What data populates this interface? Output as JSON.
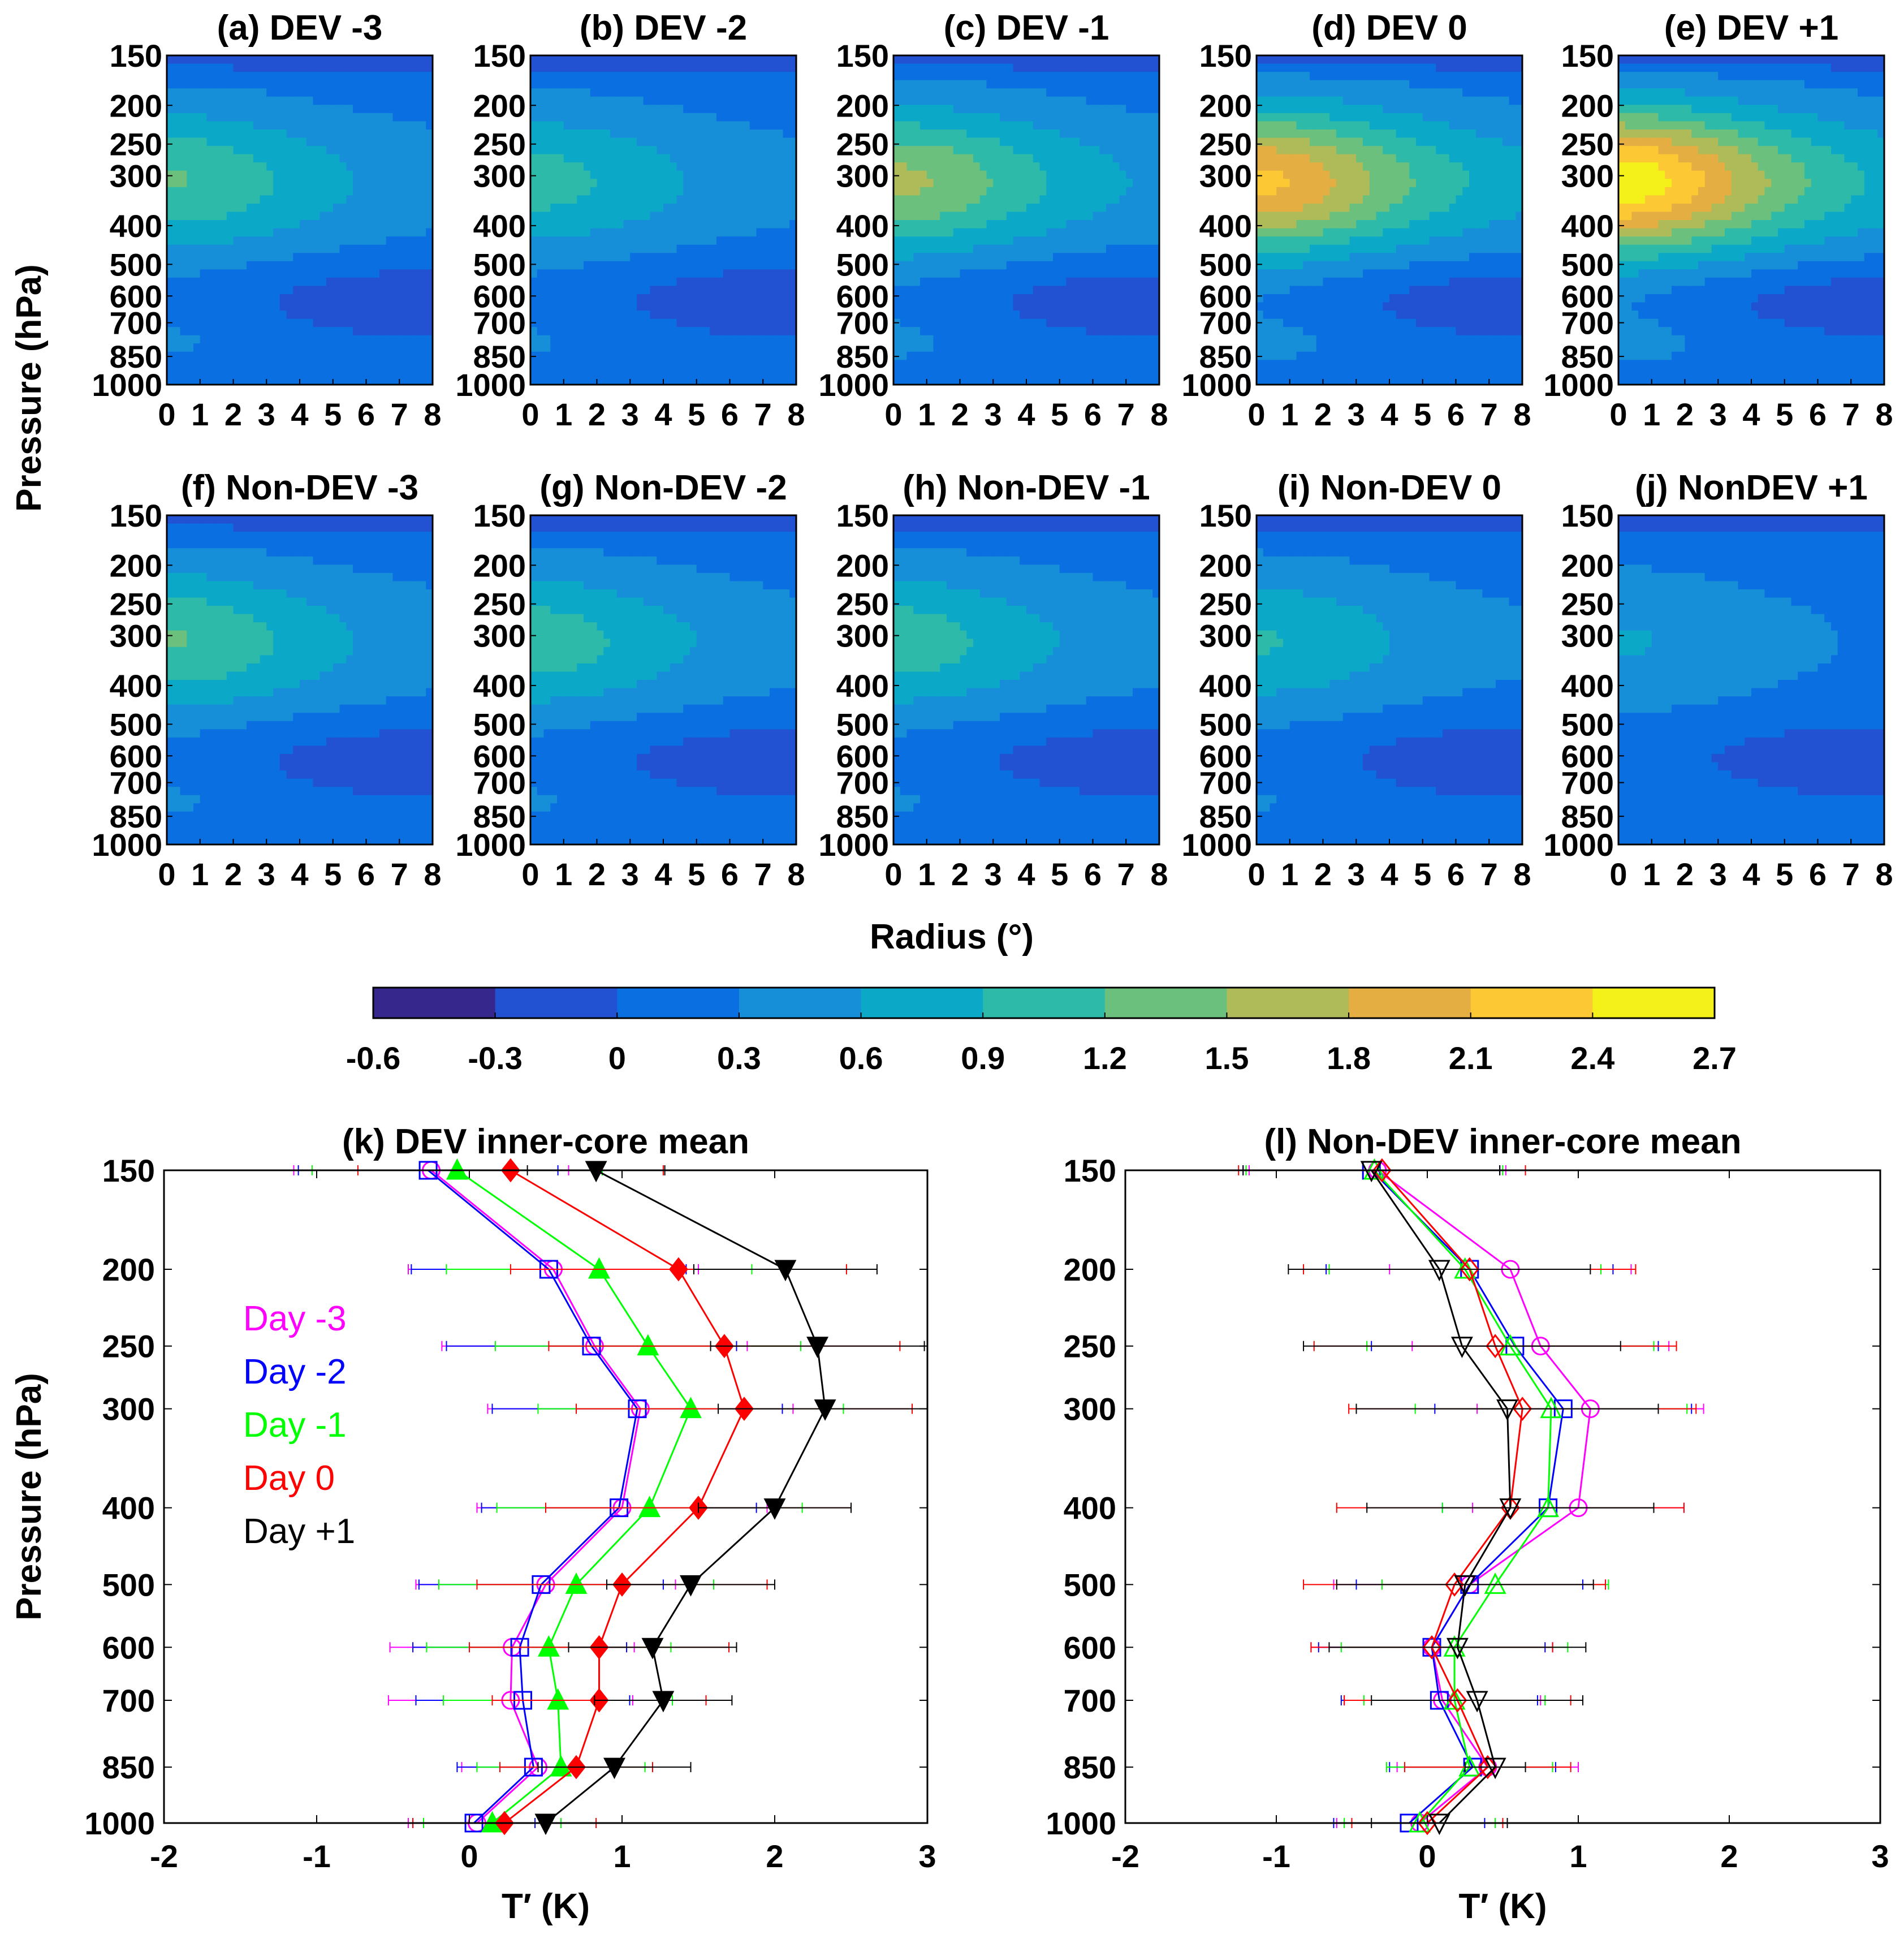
{
  "chart_data": [
    {
      "type": "contour",
      "group": "composite radius-pressure cross sections of temperature anomaly",
      "panels": [
        {
          "title": "(a) DEV -3",
          "peak": 1.1,
          "peak_p": 300
        },
        {
          "title": "(b) DEV -2",
          "peak": 0.9,
          "peak_p": 300
        },
        {
          "title": "(c) DEV -1",
          "peak": 1.45,
          "peak_p": 300
        },
        {
          "title": "(d) DEV 0",
          "peak": 2.05,
          "peak_p": 300
        },
        {
          "title": "(e) DEV +1",
          "peak": 2.5,
          "peak_p": 300
        },
        {
          "title": "(f) Non-DEV -3",
          "peak": 1.1,
          "peak_p": 300
        },
        {
          "title": "(g) Non-DEV -2",
          "peak": 0.95,
          "peak_p": 300
        },
        {
          "title": "(h) Non-DEV -1",
          "peak": 0.95,
          "peak_p": 300
        },
        {
          "title": "(i) Non-DEV 0",
          "peak": 0.8,
          "peak_p": 300
        },
        {
          "title": "(j) NonDEV +1",
          "peak": 0.5,
          "peak_p": 300
        }
      ],
      "x_ticks": [
        "0",
        "1",
        "2",
        "3",
        "4",
        "5",
        "6",
        "7",
        "8"
      ],
      "xlim": [
        0,
        8
      ],
      "y_ticks": [
        "150",
        "200",
        "250",
        "300",
        "400",
        "500",
        "600",
        "700",
        "850",
        "1000"
      ],
      "ylabel": "Pressure (hPa)",
      "xlabel": "Radius (°)"
    },
    {
      "type": "colorbar",
      "levels": [
        "-0.6",
        "-0.3",
        "0",
        "0.3",
        "0.6",
        "0.9",
        "1.2",
        "1.5",
        "1.8",
        "2.1",
        "2.4",
        "2.7"
      ],
      "colors": [
        "#35278c",
        "#2251d1",
        "#0a6fe0",
        "#168fd8",
        "#0ca8c8",
        "#2ebaa8",
        "#6cc07d",
        "#aebb58",
        "#e4ae42",
        "#fcc834",
        "#f3f01a"
      ]
    },
    {
      "type": "line",
      "title": "(k) DEV inner-core mean",
      "xlabel": "T′ (K)",
      "ylabel": "Pressure (hPa)",
      "xlim": [
        -2,
        3
      ],
      "x_ticks": [
        "-2",
        "-1",
        "0",
        "1",
        "2",
        "3"
      ],
      "pressure": [
        150,
        200,
        250,
        300,
        400,
        500,
        600,
        700,
        850,
        1000
      ],
      "y_ticks": [
        "150",
        "200",
        "250",
        "300",
        "400",
        "500",
        "600",
        "700",
        "850",
        "1000"
      ],
      "series": [
        {
          "name": "Day -3",
          "color": "#ff00ff",
          "marker": "circle",
          "filled": false,
          "values": [
            -0.25,
            0.55,
            0.82,
            1.12,
            1.0,
            0.5,
            0.28,
            0.27,
            0.45,
            0.05
          ],
          "spread": [
            0.9,
            0.95,
            1.0,
            1.0,
            0.95,
            0.85,
            0.8,
            0.8,
            0.5,
            0.45
          ]
        },
        {
          "name": "Day -2",
          "color": "#0000ff",
          "marker": "square",
          "filled": false,
          "values": [
            -0.27,
            0.52,
            0.8,
            1.1,
            0.98,
            0.47,
            0.33,
            0.35,
            0.42,
            0.03
          ],
          "spread": [
            0.85,
            0.9,
            0.95,
            0.95,
            0.9,
            0.8,
            0.7,
            0.7,
            0.5,
            0.4
          ]
        },
        {
          "name": "Day -1",
          "color": "#00ff00",
          "marker": "triangle-up",
          "filled": true,
          "values": [
            -0.08,
            0.85,
            1.17,
            1.45,
            1.18,
            0.7,
            0.52,
            0.58,
            0.6,
            0.15
          ],
          "spread": [
            0.95,
            1.0,
            1.0,
            1.0,
            1.0,
            0.9,
            0.8,
            0.75,
            0.55,
            0.45
          ]
        },
        {
          "name": "Day 0",
          "color": "#ff0000",
          "marker": "diamond",
          "filled": true,
          "values": [
            0.27,
            1.37,
            1.67,
            1.8,
            1.5,
            1.0,
            0.85,
            0.85,
            0.7,
            0.23
          ],
          "spread": [
            1.0,
            1.1,
            1.15,
            1.1,
            1.0,
            0.95,
            0.85,
            0.7,
            0.5,
            0.6
          ]
        },
        {
          "name": "Day +1",
          "color": "#000000",
          "marker": "triangle-down",
          "filled": true,
          "values": [
            0.83,
            2.07,
            2.28,
            2.33,
            2.0,
            1.45,
            1.2,
            1.27,
            0.95,
            0.5
          ],
          "spread": [
            0.45,
            0.6,
            0.7,
            0.7,
            0.5,
            0.55,
            0.55,
            0.45,
            0.5,
            0.0
          ]
        }
      ],
      "legend": [
        "Day -3",
        "Day -2",
        "Day -1",
        "Day 0",
        "Day +1"
      ]
    },
    {
      "type": "line",
      "title": "(l) Non-DEV inner-core mean",
      "xlabel": "T′ (K)",
      "xlim": [
        -2,
        3
      ],
      "x_ticks": [
        "-2",
        "-1",
        "0",
        "1",
        "2",
        "3"
      ],
      "pressure": [
        150,
        200,
        250,
        300,
        400,
        500,
        600,
        700,
        850,
        1000
      ],
      "y_ticks": [
        "150",
        "200",
        "250",
        "300",
        "400",
        "500",
        "600",
        "700",
        "850",
        "1000"
      ],
      "series": [
        {
          "name": "Day -3",
          "color": "#ff00ff",
          "marker": "circle",
          "values": [
            -0.33,
            0.55,
            0.75,
            1.08,
            1.0,
            0.28,
            0.03,
            0.1,
            0.4,
            -0.05
          ],
          "spread": [
            0.85,
            0.8,
            0.85,
            0.75,
            0.7,
            0.9,
            0.8,
            0.65,
            0.6,
            0.55
          ]
        },
        {
          "name": "Day -2",
          "color": "#0000ff",
          "marker": "square",
          "values": [
            -0.37,
            0.28,
            0.58,
            0.9,
            0.8,
            0.28,
            0.03,
            0.08,
            0.3,
            -0.12
          ],
          "spread": [
            0.85,
            0.95,
            0.95,
            0.85,
            0.7,
            0.75,
            0.75,
            0.65,
            0.55,
            0.5
          ]
        },
        {
          "name": "Day -1",
          "color": "#00ff00",
          "marker": "triangle-up",
          "values": [
            -0.35,
            0.25,
            0.55,
            0.82,
            0.8,
            0.45,
            0.18,
            0.18,
            0.28,
            -0.05
          ],
          "spread": [
            0.85,
            0.9,
            0.95,
            0.9,
            0.7,
            0.75,
            0.75,
            0.6,
            0.55,
            0.5
          ]
        },
        {
          "name": "Day 0",
          "color": "#ff0000",
          "marker": "diamond",
          "values": [
            -0.3,
            0.28,
            0.45,
            0.63,
            0.55,
            0.18,
            0.03,
            0.2,
            0.4,
            0.0
          ],
          "spread": [
            0.95,
            1.1,
            1.2,
            1.15,
            1.15,
            1.0,
            0.8,
            0.75,
            0.55,
            0.5
          ]
        },
        {
          "name": "Day +1",
          "color": "#000000",
          "marker": "triangle-down",
          "values": [
            -0.37,
            0.08,
            0.23,
            0.53,
            0.55,
            0.25,
            0.2,
            0.33,
            0.45,
            0.08
          ],
          "spread": [
            0.85,
            1.0,
            1.05,
            1.0,
            0.95,
            0.85,
            0.85,
            0.7,
            0.2,
            0.45
          ]
        }
      ]
    }
  ]
}
